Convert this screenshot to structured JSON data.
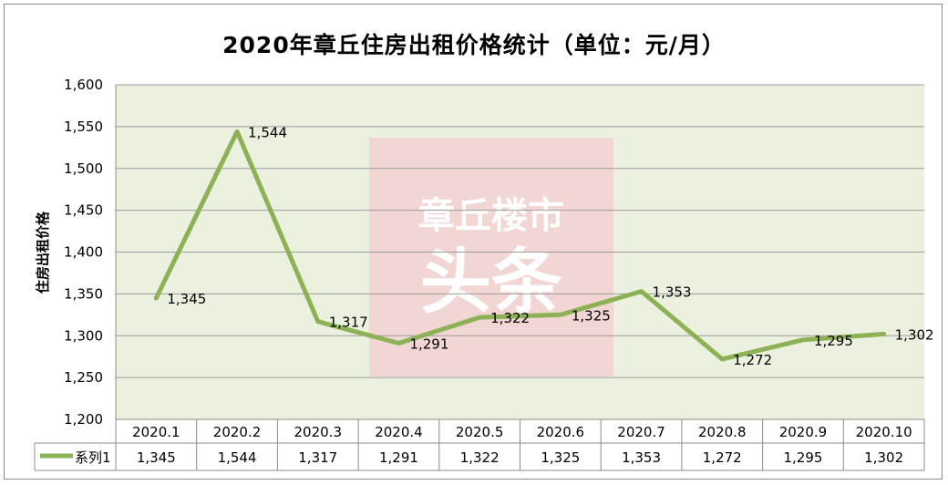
{
  "chart_data": {
    "type": "line",
    "title": "2020年章丘住房出租价格统计（单位：元/月）",
    "ylabel": "住房出租价格",
    "xlabel": "",
    "categories": [
      "2020.1",
      "2020.2",
      "2020.3",
      "2020.4",
      "2020.5",
      "2020.6",
      "2020.7",
      "2020.8",
      "2020.9",
      "2020.10"
    ],
    "series": [
      {
        "name": "系列1",
        "values": [
          1345,
          1544,
          1317,
          1291,
          1322,
          1325,
          1353,
          1272,
          1295,
          1302
        ]
      }
    ],
    "ylim": [
      1200,
      1600
    ],
    "yticks": [
      1200,
      1250,
      1300,
      1350,
      1400,
      1450,
      1500,
      1550,
      1600
    ],
    "ytick_labels": [
      "1,200",
      "1,250",
      "1,300",
      "1,350",
      "1,400",
      "1,450",
      "1,500",
      "1,550",
      "1,600"
    ],
    "value_labels": [
      "1,345",
      "1,544",
      "1,317",
      "1,291",
      "1,322",
      "1,325",
      "1,353",
      "1,272",
      "1,295",
      "1,302"
    ],
    "grid": true,
    "legend": "data-table",
    "data_table": true
  },
  "colors": {
    "line": "#8db255",
    "plot_bg": "#ebf1de",
    "grid": "#9c9c9c",
    "watermark_bg": "#f2d6d3"
  },
  "watermark": {
    "line1": "章丘楼市",
    "line2": "头条"
  }
}
